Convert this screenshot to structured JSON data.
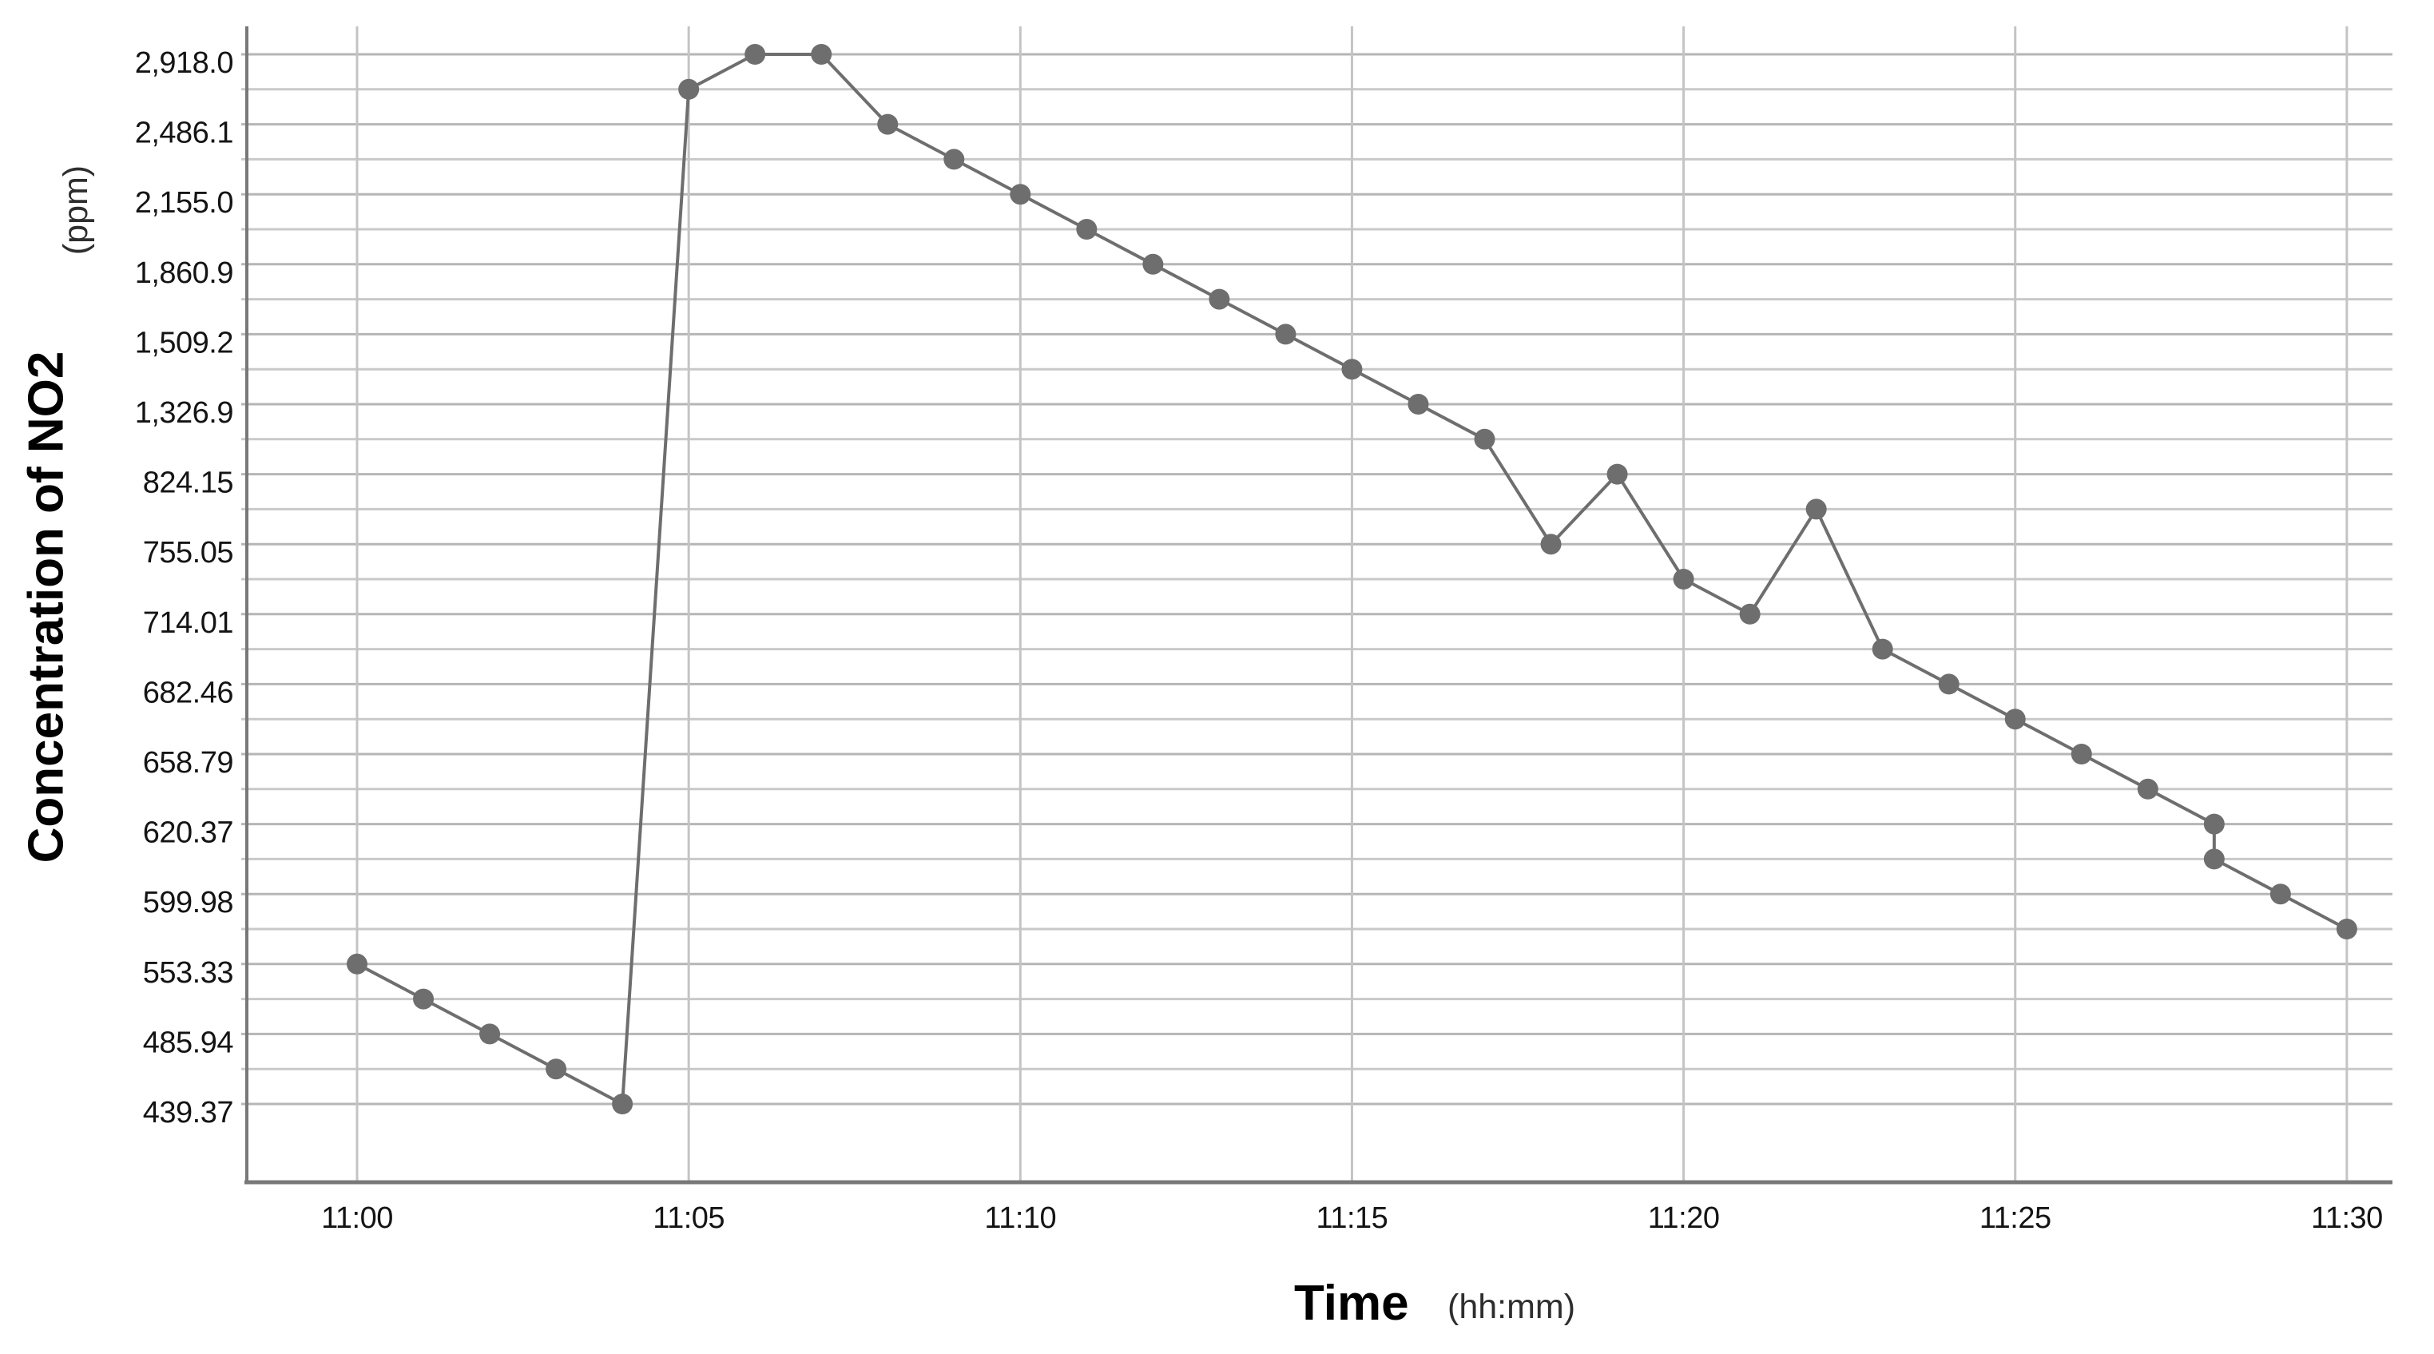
{
  "figure": {
    "y_axis_title": "Concentration of NO2",
    "y_axis_unit": "(ppm)",
    "x_axis_title": "Time",
    "x_axis_unit": "(hh:mm)"
  },
  "style": {
    "background": "#ffffff",
    "axis_line_color": "#787878",
    "grid_major_color": "#b6b6b6",
    "grid_minor_color": "#c9c9c9",
    "vgrid_color": "#c4c4c4",
    "series_color": "#6e6e6e",
    "marker_color": "#6e6e6e",
    "tick_label_color": "#141414"
  },
  "chart_data": {
    "type": "line",
    "title": "",
    "xlabel": "Time (hh:mm)",
    "ylabel": "Concentration of NO2 (ppm)",
    "grid": true,
    "legend": false,
    "x_axis": {
      "tick_labels": [
        "11:00",
        "11:05",
        "11:10",
        "11:15",
        "11:20",
        "11:25",
        "11:30"
      ],
      "tick_minutes": [
        0,
        5,
        10,
        15,
        20,
        25,
        30
      ],
      "range_minutes": [
        0,
        30
      ]
    },
    "y_axis": {
      "type": "categorical-value-rank",
      "note": "Each distinct observed value occupies one equally spaced gridline (31 ranks, rank 0 = highest = 2918.0 at top); every second gridline is labeled. Values on unlabeled gridlines are approximations read from the plot.",
      "n_ranks": 31,
      "tick_labels": [
        "2,918.0",
        "2,486.1",
        "2,155.0",
        "1,860.9",
        "1,509.2",
        "1,326.9",
        "824.15",
        "755.05",
        "714.01",
        "682.46",
        "658.79",
        "620.37",
        "599.98",
        "553.33",
        "485.94",
        "439.37"
      ],
      "labeled_ranks": [
        0,
        2,
        4,
        6,
        8,
        10,
        12,
        14,
        16,
        18,
        20,
        22,
        24,
        26,
        28,
        30
      ],
      "labeled_values": [
        2918.0,
        2486.1,
        2155.0,
        1860.9,
        1509.2,
        1326.9,
        824.15,
        755.05,
        714.01,
        682.46,
        658.79,
        620.37,
        599.98,
        553.33,
        485.94,
        439.37
      ]
    },
    "series": [
      {
        "name": "NO2 concentration",
        "marker": "circle",
        "color": "#6e6e6e",
        "points": [
          {
            "time": "11:00",
            "minute": 0,
            "rank": 26,
            "value": 553.33,
            "approx": false
          },
          {
            "time": "11:01",
            "minute": 1,
            "rank": 27,
            "value": 520,
            "approx": true
          },
          {
            "time": "11:02",
            "minute": 2,
            "rank": 28,
            "value": 485.94,
            "approx": false
          },
          {
            "time": "11:03",
            "minute": 3,
            "rank": 29,
            "value": 462,
            "approx": true
          },
          {
            "time": "11:04",
            "minute": 4,
            "rank": 30,
            "value": 439.37,
            "approx": false
          },
          {
            "time": "11:05",
            "minute": 5,
            "rank": 1,
            "value": 2700,
            "approx": true
          },
          {
            "time": "11:06",
            "minute": 6,
            "rank": 0,
            "value": 2918.0,
            "approx": false
          },
          {
            "time": "11:07",
            "minute": 7,
            "rank": 0,
            "value": 2918.0,
            "approx": false
          },
          {
            "time": "11:08",
            "minute": 8,
            "rank": 2,
            "value": 2486.1,
            "approx": false
          },
          {
            "time": "11:09",
            "minute": 9,
            "rank": 3,
            "value": 2320,
            "approx": true
          },
          {
            "time": "11:10",
            "minute": 10,
            "rank": 4,
            "value": 2155.0,
            "approx": false
          },
          {
            "time": "11:11",
            "minute": 11,
            "rank": 5,
            "value": 2010,
            "approx": true
          },
          {
            "time": "11:12",
            "minute": 12,
            "rank": 6,
            "value": 1860.9,
            "approx": false
          },
          {
            "time": "11:13",
            "minute": 13,
            "rank": 7,
            "value": 1690,
            "approx": true
          },
          {
            "time": "11:14",
            "minute": 14,
            "rank": 8,
            "value": 1509.2,
            "approx": false
          },
          {
            "time": "11:15",
            "minute": 15,
            "rank": 9,
            "value": 1420,
            "approx": true
          },
          {
            "time": "11:16",
            "minute": 16,
            "rank": 10,
            "value": 1326.9,
            "approx": false
          },
          {
            "time": "11:17",
            "minute": 17,
            "rank": 11,
            "value": 1080,
            "approx": true
          },
          {
            "time": "11:18",
            "minute": 18,
            "rank": 14,
            "value": 755.05,
            "approx": false
          },
          {
            "time": "11:19",
            "minute": 19,
            "rank": 12,
            "value": 824.15,
            "approx": false
          },
          {
            "time": "11:20",
            "minute": 20,
            "rank": 15,
            "value": 735,
            "approx": true
          },
          {
            "time": "11:21",
            "minute": 21,
            "rank": 16,
            "value": 714.01,
            "approx": false
          },
          {
            "time": "11:22",
            "minute": 22,
            "rank": 13,
            "value": 790,
            "approx": true
          },
          {
            "time": "11:23",
            "minute": 23,
            "rank": 17,
            "value": 700,
            "approx": true
          },
          {
            "time": "11:24",
            "minute": 24,
            "rank": 18,
            "value": 682.46,
            "approx": false
          },
          {
            "time": "11:25",
            "minute": 25,
            "rank": 19,
            "value": 670,
            "approx": true
          },
          {
            "time": "11:26",
            "minute": 26,
            "rank": 20,
            "value": 658.79,
            "approx": false
          },
          {
            "time": "11:27",
            "minute": 27,
            "rank": 21,
            "value": 640,
            "approx": true
          },
          {
            "time": "11:28",
            "minute": 28,
            "rank": 22,
            "value": 620.37,
            "approx": false
          },
          {
            "time": "11:28",
            "minute": 28,
            "rank": 23,
            "value": 610,
            "approx": true
          },
          {
            "time": "11:29",
            "minute": 29,
            "rank": 24,
            "value": 599.98,
            "approx": false
          },
          {
            "time": "11:30",
            "minute": 30,
            "rank": 25,
            "value": 576,
            "approx": true
          }
        ]
      }
    ]
  }
}
